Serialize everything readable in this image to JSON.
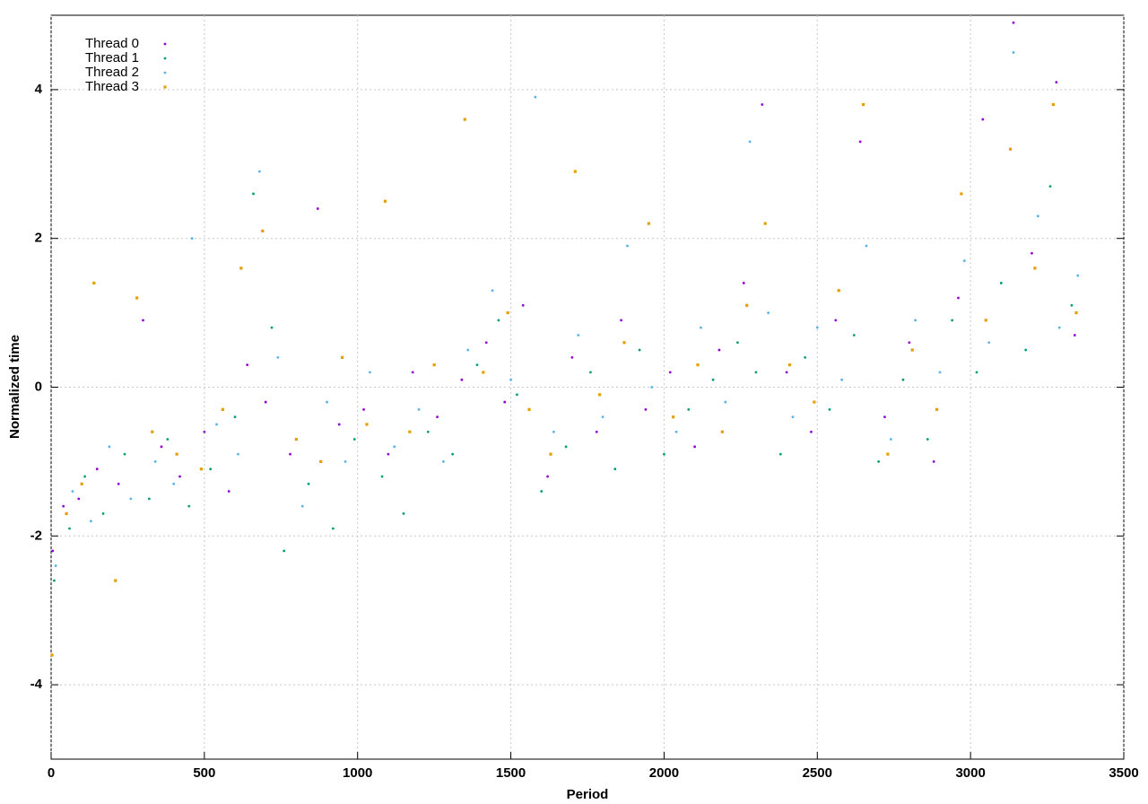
{
  "chart_data": {
    "type": "scatter",
    "x_label": "Period",
    "y_label": "Normalized time",
    "xlim": [
      0,
      3500
    ],
    "ylim": [
      -5,
      5
    ],
    "xticks": [
      0,
      500,
      1000,
      1500,
      2000,
      2500,
      3000,
      3500
    ],
    "yticks": [
      -4,
      -2,
      0,
      2,
      4
    ],
    "grid": true,
    "legend": "top-left",
    "series": [
      {
        "name": "Thread 0",
        "color": "#9400d3",
        "marker": "dot",
        "x": [
          5,
          40,
          90,
          150,
          220,
          300,
          360,
          420,
          500,
          580,
          640,
          700,
          780,
          870,
          940,
          1020,
          1100,
          1180,
          1260,
          1340,
          1420,
          1480,
          1540,
          1620,
          1700,
          1780,
          1860,
          1940,
          2020,
          2100,
          2180,
          2260,
          2320,
          2400,
          2480,
          2560,
          2640,
          2720,
          2800,
          2880,
          2960,
          3040,
          3140,
          3200,
          3280,
          3340
        ],
        "values": [
          -2.2,
          -1.6,
          -1.5,
          -1.1,
          -1.3,
          0.9,
          -0.8,
          -1.2,
          -0.6,
          -1.4,
          0.3,
          -0.2,
          -0.9,
          2.4,
          -0.5,
          -0.3,
          -0.9,
          0.2,
          -0.4,
          0.1,
          0.6,
          -0.2,
          1.1,
          -1.2,
          0.4,
          -0.6,
          0.9,
          -0.3,
          0.2,
          -0.8,
          0.5,
          1.4,
          3.8,
          0.2,
          -0.6,
          0.9,
          3.3,
          -0.4,
          0.6,
          -1.0,
          1.2,
          3.6,
          4.9,
          1.8,
          4.1,
          0.7
        ]
      },
      {
        "name": "Thread 1",
        "color": "#009e73",
        "marker": "dot",
        "x": [
          10,
          60,
          110,
          170,
          240,
          320,
          380,
          450,
          520,
          600,
          660,
          720,
          760,
          840,
          920,
          990,
          1080,
          1150,
          1230,
          1310,
          1390,
          1460,
          1520,
          1600,
          1680,
          1760,
          1840,
          1920,
          2000,
          2080,
          2160,
          2240,
          2300,
          2380,
          2460,
          2540,
          2620,
          2700,
          2780,
          2860,
          2940,
          3020,
          3100,
          3180,
          3260,
          3330
        ],
        "values": [
          -2.6,
          -1.9,
          -1.2,
          -1.7,
          -0.9,
          -1.5,
          -0.7,
          -1.6,
          -1.1,
          -0.4,
          2.6,
          0.8,
          -2.2,
          -1.3,
          -1.9,
          -0.7,
          -1.2,
          -1.7,
          -0.6,
          -0.9,
          0.3,
          0.9,
          -0.1,
          -1.4,
          -0.8,
          0.2,
          -1.1,
          0.5,
          -0.9,
          -0.3,
          0.1,
          0.6,
          0.2,
          -0.9,
          0.4,
          -0.3,
          0.7,
          -1.0,
          0.1,
          -0.7,
          0.9,
          0.2,
          1.4,
          0.5,
          2.7,
          1.1
        ]
      },
      {
        "name": "Thread 2",
        "color": "#56b4e9",
        "marker": "dot",
        "x": [
          15,
          70,
          130,
          190,
          260,
          340,
          400,
          460,
          540,
          610,
          680,
          740,
          820,
          900,
          960,
          1040,
          1120,
          1200,
          1280,
          1360,
          1440,
          1500,
          1580,
          1640,
          1720,
          1800,
          1880,
          1960,
          2040,
          2120,
          2200,
          2280,
          2340,
          2420,
          2500,
          2580,
          2660,
          2740,
          2820,
          2900,
          2980,
          3060,
          3140,
          3220,
          3290,
          3350
        ],
        "values": [
          -2.4,
          -1.4,
          -1.8,
          -0.8,
          -1.5,
          -1.0,
          -1.3,
          2.0,
          -0.5,
          -0.9,
          2.9,
          0.4,
          -1.6,
          -0.2,
          -1.0,
          0.2,
          -0.8,
          -0.3,
          -1.0,
          0.5,
          1.3,
          0.1,
          3.9,
          -0.6,
          0.7,
          -0.4,
          1.9,
          0.0,
          -0.6,
          0.8,
          -0.2,
          3.3,
          1.0,
          -0.4,
          0.8,
          0.1,
          1.9,
          -0.7,
          0.9,
          0.2,
          1.7,
          0.6,
          4.5,
          2.3,
          0.8,
          1.5
        ]
      },
      {
        "name": "Thread 3",
        "color": "#e69f00",
        "marker": "square",
        "x": [
          3,
          50,
          100,
          140,
          210,
          280,
          330,
          410,
          490,
          560,
          620,
          690,
          800,
          880,
          950,
          1030,
          1090,
          1170,
          1250,
          1350,
          1410,
          1490,
          1560,
          1630,
          1710,
          1790,
          1870,
          1950,
          2030,
          2110,
          2190,
          2270,
          2330,
          2410,
          2490,
          2570,
          2650,
          2730,
          2810,
          2890,
          2970,
          3050,
          3130,
          3210,
          3270,
          3345
        ],
        "values": [
          -3.6,
          -1.7,
          -1.3,
          1.4,
          -2.6,
          1.2,
          -0.6,
          -0.9,
          -1.1,
          -0.3,
          1.6,
          2.1,
          -0.7,
          -1.0,
          0.4,
          -0.5,
          2.5,
          -0.6,
          0.3,
          3.6,
          0.2,
          1.0,
          -0.3,
          -0.9,
          2.9,
          -0.1,
          0.6,
          2.2,
          -0.4,
          0.3,
          -0.6,
          1.1,
          2.2,
          0.3,
          -0.2,
          1.3,
          3.8,
          -0.9,
          0.5,
          -0.3,
          2.6,
          0.9,
          3.2,
          1.6,
          3.8,
          1.0
        ]
      }
    ]
  }
}
